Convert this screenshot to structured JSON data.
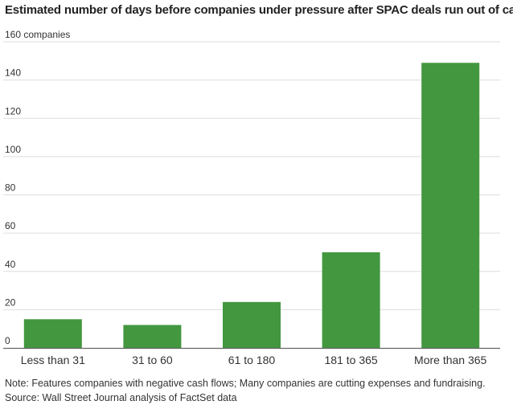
{
  "title": "Estimated number of days before companies under pressure after SPAC deals run out of cash",
  "note": "Note: Features companies with negative cash flows; Many companies are cutting expenses and fundraising.",
  "source": "Source: Wall Street Journal analysis of FactSet data",
  "colors": {
    "bar": "#43973f",
    "grid": "#dddddd",
    "baseline": "#666666"
  },
  "chart_data": {
    "type": "bar",
    "title": "Estimated number of days before companies under pressure after SPAC deals run out of cash",
    "categories": [
      "Less than 31",
      "31 to 60",
      "61 to 180",
      "181 to 365",
      "More than 365"
    ],
    "values": [
      15,
      12,
      24,
      50,
      149
    ],
    "ylim": [
      0,
      160
    ],
    "yticks": [
      0,
      20,
      40,
      60,
      80,
      100,
      120,
      140,
      160
    ],
    "ytick_labels": [
      "0",
      "20",
      "40",
      "60",
      "80",
      "100",
      "120",
      "140",
      "160 companies"
    ],
    "xlabel": "",
    "ylabel": "companies",
    "grid": true,
    "legend": "none"
  }
}
